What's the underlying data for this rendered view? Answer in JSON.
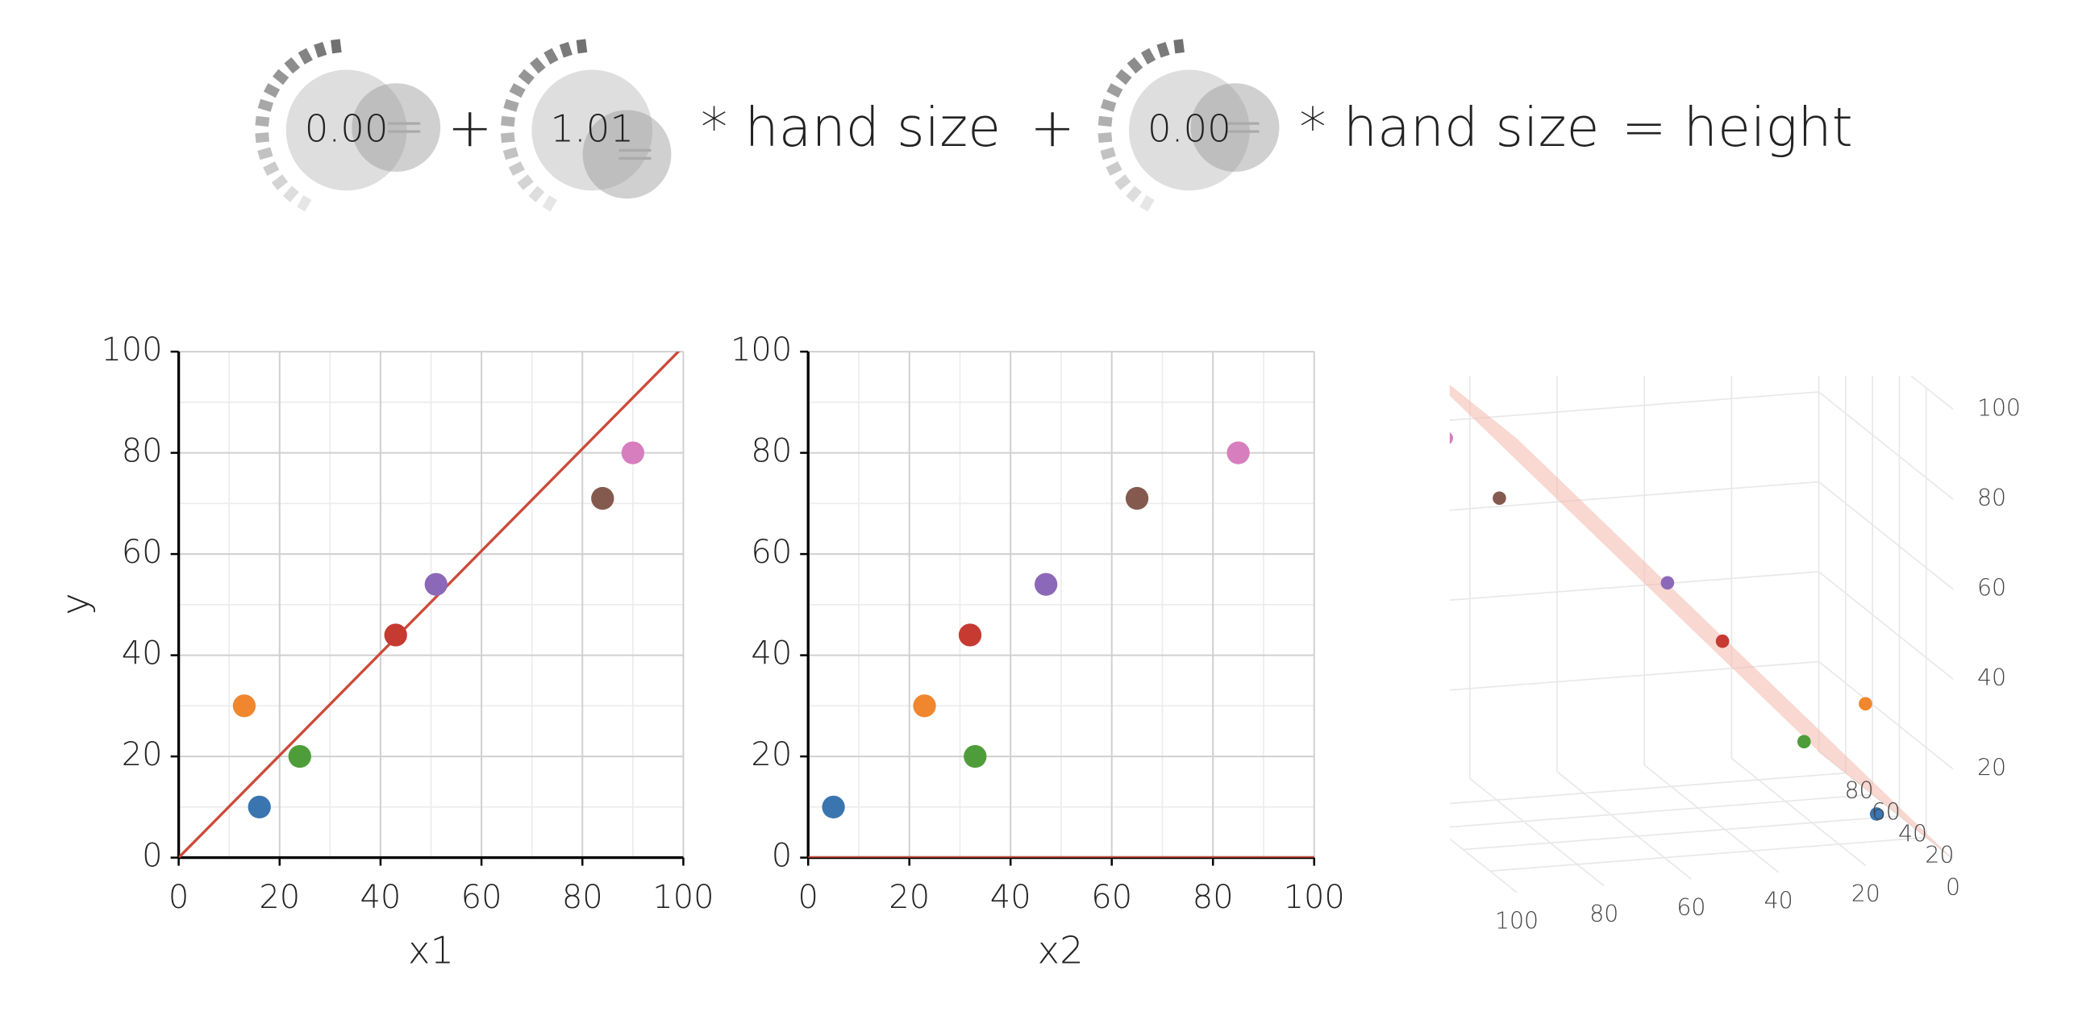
{
  "equation": {
    "knobs": [
      {
        "value": 0,
        "label": "0.00"
      },
      1.01,
      {
        "value": 0,
        "label": "0.00"
      }
    ],
    "terms": [
      "+",
      "* hand size",
      "+",
      "* hand size",
      "= height"
    ]
  },
  "chart_data": [
    {
      "type": "scatter",
      "xlabel": "x1",
      "ylabel": "y",
      "x": [
        16,
        13,
        24,
        43,
        51,
        84,
        90
      ],
      "values": [
        10,
        30,
        20,
        44,
        54,
        71,
        80
      ],
      "colors": [
        "#3a75b0",
        "#f0862e",
        "#4f9d3a",
        "#c63a32",
        "#8c68b8",
        "#845a4f",
        "#d77ebf"
      ],
      "xlim": [
        0,
        100
      ],
      "ylim": [
        0,
        100
      ],
      "xticks": [
        0,
        20,
        40,
        60,
        80,
        100
      ],
      "yticks": [
        0,
        20,
        40,
        60,
        80,
        100
      ],
      "minor_grid": [
        10,
        30,
        50,
        70,
        90
      ],
      "grid": true,
      "line_color": "#cc4a3a"
    },
    {
      "type": "scatter",
      "xlabel": "x2",
      "x": [
        5,
        23,
        33,
        32,
        47,
        65,
        85
      ],
      "values": [
        10,
        30,
        20,
        44,
        54,
        71,
        80
      ],
      "colors": [
        "#3a75b0",
        "#f0862e",
        "#4f9d3a",
        "#c63a32",
        "#8c68b8",
        "#845a4f",
        "#d77ebf"
      ],
      "xlim": [
        0,
        100
      ],
      "ylim": [
        0,
        100
      ],
      "xticks": [
        0,
        20,
        40,
        60,
        80,
        100
      ],
      "yticks": [
        0,
        20,
        40,
        60,
        80,
        100
      ],
      "minor_grid": [
        10,
        30,
        50,
        70,
        90
      ],
      "grid": true,
      "line_color": "#cc4a3a"
    },
    {
      "type": "scatter3d",
      "x1ticks": [
        0,
        20,
        40,
        60,
        80,
        100
      ],
      "x2ticks": [
        20,
        40,
        60,
        80
      ],
      "yticks": [
        20,
        40,
        60,
        80,
        100
      ],
      "plane_color": "#f2b8ac"
    }
  ]
}
